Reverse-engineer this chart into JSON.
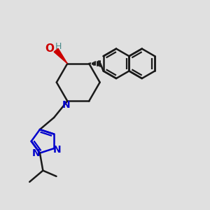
{
  "bg_color": "#e0e0e0",
  "bond_color": "#1a1a1a",
  "n_color": "#0000cc",
  "o_color": "#cc0000",
  "h_color": "#4a8a8a",
  "lw": 1.8,
  "figsize": [
    3.0,
    3.0
  ],
  "dpi": 100,
  "xlim": [
    0,
    10
  ],
  "ylim": [
    0,
    10
  ]
}
